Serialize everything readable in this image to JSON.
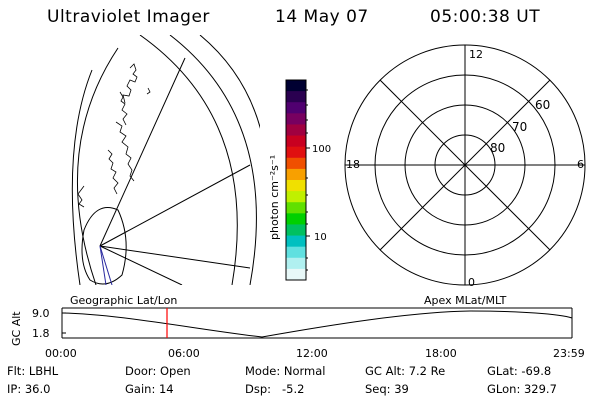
{
  "header": {
    "title": "Ultraviolet Imager",
    "date": "14 May 07",
    "time": "05:00:38 UT"
  },
  "colorbar": {
    "label": "photon cm⁻²s⁻¹",
    "ticks": [
      "100",
      "10"
    ],
    "colors": [
      "#000032",
      "#2a0050",
      "#500070",
      "#780060",
      "#a00040",
      "#c80020",
      "#e01010",
      "#f05000",
      "#f8a000",
      "#f0e000",
      "#c0f000",
      "#60e000",
      "#00d000",
      "#00c060",
      "#00c0c0",
      "#60e0e0",
      "#b0f0f0",
      "#e8f8f8"
    ]
  },
  "polar_plot": {
    "mlt_labels": [
      "12",
      "18",
      "6",
      "0"
    ],
    "lat_labels": [
      "60",
      "70",
      "80"
    ]
  },
  "timeline": {
    "left_title": "Geographic Lat/Lon",
    "right_title": "Apex  MLat/MLT",
    "ylabel": "GC Alt",
    "y_ticks": [
      "9.0",
      "1.8"
    ],
    "x_ticks": [
      "00:00",
      "06:00",
      "12:00",
      "18:00",
      "23:59"
    ],
    "marker_color": "#ff0000",
    "marker_time": "05:00"
  },
  "info": {
    "filter": "Flt: LBHL",
    "ip": "IP: 36.0",
    "door": "Door: Open",
    "gain": "Gain: 14",
    "mode": "Mode: Normal",
    "dsp": "Dsp:   -5.2",
    "gc_alt": "GC Alt: 7.2 Re",
    "seq": "Seq: 39",
    "glat": "GLat: -69.8",
    "glon": "GLon: 329.7"
  }
}
